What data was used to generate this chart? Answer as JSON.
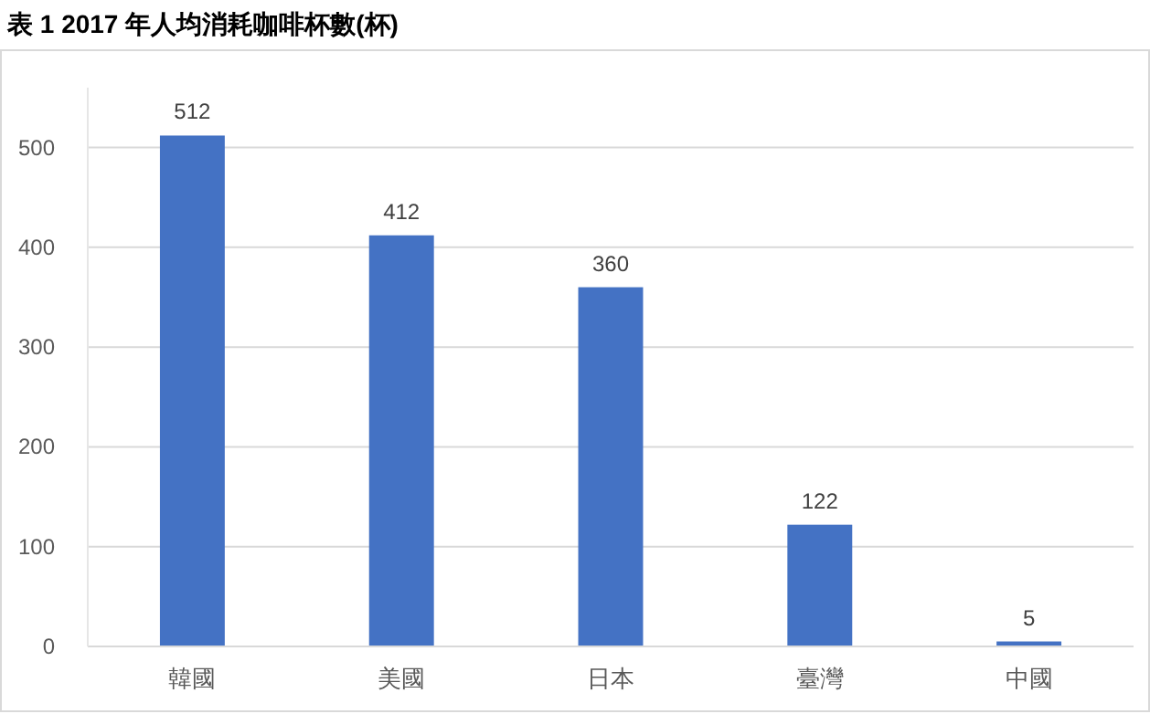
{
  "chart_data": {
    "type": "bar",
    "title": "表 1 2017 年人均消耗咖啡杯數(杯)",
    "categories": [
      "韓國",
      "美國",
      "日本",
      "臺灣",
      "中國"
    ],
    "values": [
      512,
      412,
      360,
      122,
      5
    ],
    "color": "#4472c4",
    "ylim": [
      0,
      560
    ],
    "yticks": [
      0,
      100,
      200,
      300,
      400,
      500
    ],
    "grid": "y",
    "data_labels": true
  }
}
